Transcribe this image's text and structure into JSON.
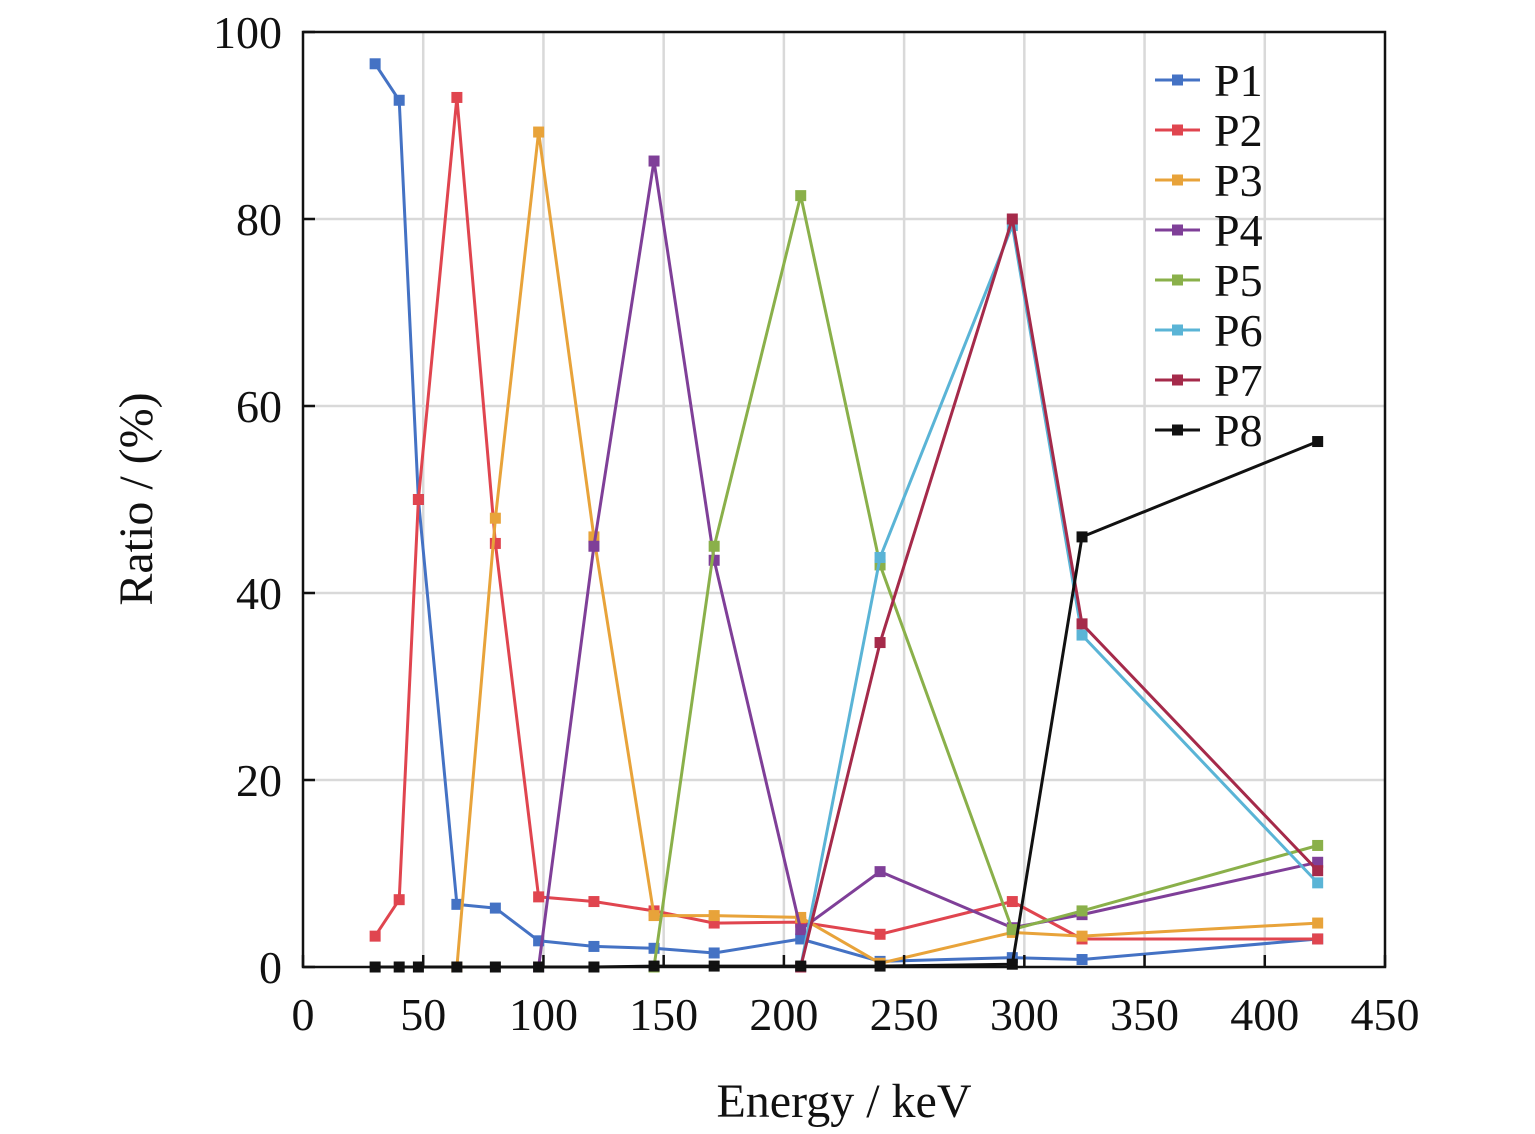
{
  "chart_data": {
    "type": "line",
    "xlabel": "Energy / keV",
    "ylabel": "Ratio / (%)",
    "xlim": [
      0,
      450
    ],
    "ylim": [
      0,
      100
    ],
    "xticks": [
      0,
      50,
      100,
      150,
      200,
      250,
      300,
      350,
      400,
      450
    ],
    "yticks": [
      0,
      20,
      40,
      60,
      80,
      100
    ],
    "grid": true,
    "legend_position": "top-right",
    "series": [
      {
        "name": "P1",
        "color": "#4472c4",
        "points": [
          [
            30,
            96.6
          ],
          [
            40,
            92.7
          ],
          [
            48,
            50
          ],
          [
            64,
            6.7
          ],
          [
            80,
            6.3
          ],
          [
            98,
            2.8
          ],
          [
            121,
            2.2
          ],
          [
            146,
            2.0
          ],
          [
            171,
            1.5
          ],
          [
            207,
            3.0
          ],
          [
            240,
            0.6
          ],
          [
            295,
            1.0
          ],
          [
            324,
            0.8
          ],
          [
            422,
            3.0
          ]
        ]
      },
      {
        "name": "P2",
        "color": "#e0454f",
        "points": [
          [
            30,
            3.3
          ],
          [
            40,
            7.2
          ],
          [
            48,
            50
          ],
          [
            64,
            93
          ],
          [
            80,
            45.3
          ],
          [
            98,
            7.5
          ],
          [
            121,
            7.0
          ],
          [
            146,
            6.0
          ],
          [
            171,
            4.7
          ],
          [
            207,
            4.8
          ],
          [
            240,
            3.5
          ],
          [
            295,
            7.0
          ],
          [
            324,
            3.0
          ],
          [
            422,
            3.0
          ]
        ]
      },
      {
        "name": "P3",
        "color": "#e8a33a",
        "points": [
          [
            64,
            0
          ],
          [
            80,
            48
          ],
          [
            98,
            89.3
          ],
          [
            121,
            46
          ],
          [
            146,
            5.5
          ],
          [
            171,
            5.5
          ],
          [
            207,
            5.3
          ],
          [
            240,
            0.4
          ],
          [
            295,
            3.7
          ],
          [
            324,
            3.3
          ],
          [
            422,
            4.7
          ]
        ]
      },
      {
        "name": "P4",
        "color": "#7f3f98",
        "points": [
          [
            98,
            0
          ],
          [
            121,
            45
          ],
          [
            146,
            86.2
          ],
          [
            171,
            43.5
          ],
          [
            207,
            4.0
          ],
          [
            240,
            10.2
          ],
          [
            295,
            4.2
          ],
          [
            324,
            5.6
          ],
          [
            422,
            11.2
          ]
        ]
      },
      {
        "name": "P5",
        "color": "#8ab04a",
        "points": [
          [
            146,
            0
          ],
          [
            171,
            45
          ],
          [
            207,
            82.5
          ],
          [
            240,
            43
          ],
          [
            295,
            4.0
          ],
          [
            324,
            6.0
          ],
          [
            422,
            13.0
          ]
        ]
      },
      {
        "name": "P6",
        "color": "#5ab4d6",
        "points": [
          [
            207,
            0
          ],
          [
            240,
            43.8
          ],
          [
            295,
            79.3
          ],
          [
            324,
            35.5
          ],
          [
            422,
            9.0
          ]
        ]
      },
      {
        "name": "P7",
        "color": "#a52a4a",
        "points": [
          [
            207,
            0
          ],
          [
            240,
            34.7
          ],
          [
            295,
            80
          ],
          [
            324,
            36.7
          ],
          [
            422,
            10.3
          ]
        ]
      },
      {
        "name": "P8",
        "color": "#111111",
        "points": [
          [
            30,
            0
          ],
          [
            40,
            0
          ],
          [
            48,
            0
          ],
          [
            64,
            0
          ],
          [
            80,
            0
          ],
          [
            98,
            0
          ],
          [
            121,
            0
          ],
          [
            146,
            0.1
          ],
          [
            171,
            0.1
          ],
          [
            207,
            0.1
          ],
          [
            240,
            0.1
          ],
          [
            295,
            0.3
          ],
          [
            324,
            46
          ],
          [
            422,
            56.2
          ]
        ]
      }
    ]
  }
}
